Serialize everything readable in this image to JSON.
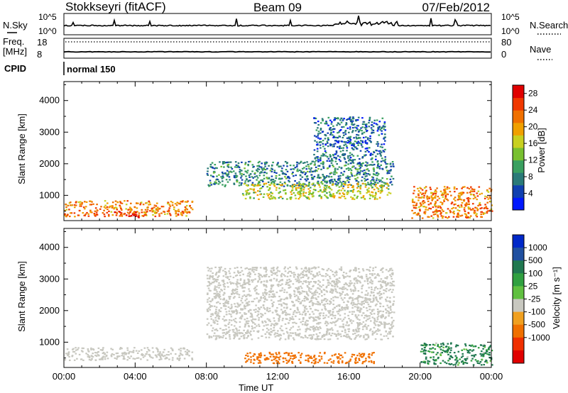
{
  "header": {
    "station": "Stokkseyri (fitACF)",
    "beam": "Beam 09",
    "date": "07/Feb/2012"
  },
  "sky_panel": {
    "left_label": "N.Sky",
    "right_label": "N.Search",
    "left_ticks": [
      "10^5",
      "10^0"
    ],
    "right_ticks": [
      "10^5",
      "10^0"
    ]
  },
  "freq_panel": {
    "left_label_1": "Freq.",
    "left_label_2": "[MHz]",
    "right_label": "Nave",
    "left_ticks": [
      "18",
      "8"
    ],
    "right_ticks": [
      "80",
      "0"
    ]
  },
  "cpid": {
    "label": "CPID",
    "mode": "normal 150"
  },
  "chart_data": [
    {
      "type": "heatmap",
      "quantity": "Power",
      "colorbar_label": "Power [dB]",
      "colorbar_ticks": [
        4,
        8,
        12,
        16,
        20,
        24,
        28
      ],
      "colorbar_range": [
        0,
        30
      ],
      "colorscale": [
        "#0018ff",
        "#1040b0",
        "#2a7a78",
        "#3aa060",
        "#78c030",
        "#c8d020",
        "#f0a000",
        "#f07000",
        "#f03800",
        "#e00000"
      ],
      "ylabel": "Slant Range [km]",
      "yticks": [
        1000,
        2000,
        3000,
        4000
      ],
      "ylim": [
        200,
        4600
      ],
      "xlim": [
        0,
        24
      ],
      "xticks": [
        "00:00",
        "04:00",
        "08:00",
        "12:00",
        "16:00",
        "20:00",
        "00:00"
      ],
      "regions": [
        {
          "t0": 0.0,
          "t1": 7.2,
          "r0": 350,
          "r1": 850,
          "value": 22
        },
        {
          "t0": 2.8,
          "t1": 4.2,
          "r0": 300,
          "r1": 500,
          "value": 28
        },
        {
          "t0": 8.0,
          "t1": 18.5,
          "r0": 1300,
          "r1": 2100,
          "value": 8
        },
        {
          "t0": 10.0,
          "t1": 18.3,
          "r0": 900,
          "r1": 1400,
          "value": 16
        },
        {
          "t0": 14.0,
          "t1": 18.0,
          "r0": 2100,
          "r1": 3500,
          "value": 6
        },
        {
          "t0": 19.5,
          "t1": 24.0,
          "r0": 300,
          "r1": 1300,
          "value": 22
        }
      ]
    },
    {
      "type": "heatmap",
      "quantity": "Velocity",
      "colorbar_label": "Velocity [m s⁻¹]",
      "colorbar_ticks": [
        1000,
        500,
        100,
        25,
        -25,
        -100,
        -500,
        -1000
      ],
      "colorscale": [
        "#0028c8",
        "#2050a0",
        "#207850",
        "#30a040",
        "#60c040",
        "#c8c8c0",
        "#f0a020",
        "#f07000",
        "#f03000",
        "#e00000"
      ],
      "ylabel": "Slant Range [km]",
      "yticks": [
        1000,
        2000,
        3000,
        4000
      ],
      "ylim": [
        200,
        4600
      ],
      "xlim": [
        0,
        24
      ],
      "xlabel": "Time UT",
      "xticks": [
        "00:00",
        "04:00",
        "08:00",
        "12:00",
        "16:00",
        "20:00",
        "00:00"
      ],
      "regions": [
        {
          "t0": 0.0,
          "t1": 7.2,
          "r0": 450,
          "r1": 850,
          "value": 0
        },
        {
          "t0": 8.0,
          "t1": 18.5,
          "r0": 1100,
          "r1": 3400,
          "value": 0
        },
        {
          "t0": 10.0,
          "t1": 17.5,
          "r0": 350,
          "r1": 700,
          "value": -300
        },
        {
          "t0": 20.0,
          "t1": 24.0,
          "r0": 300,
          "r1": 1000,
          "value": 150
        }
      ]
    }
  ]
}
